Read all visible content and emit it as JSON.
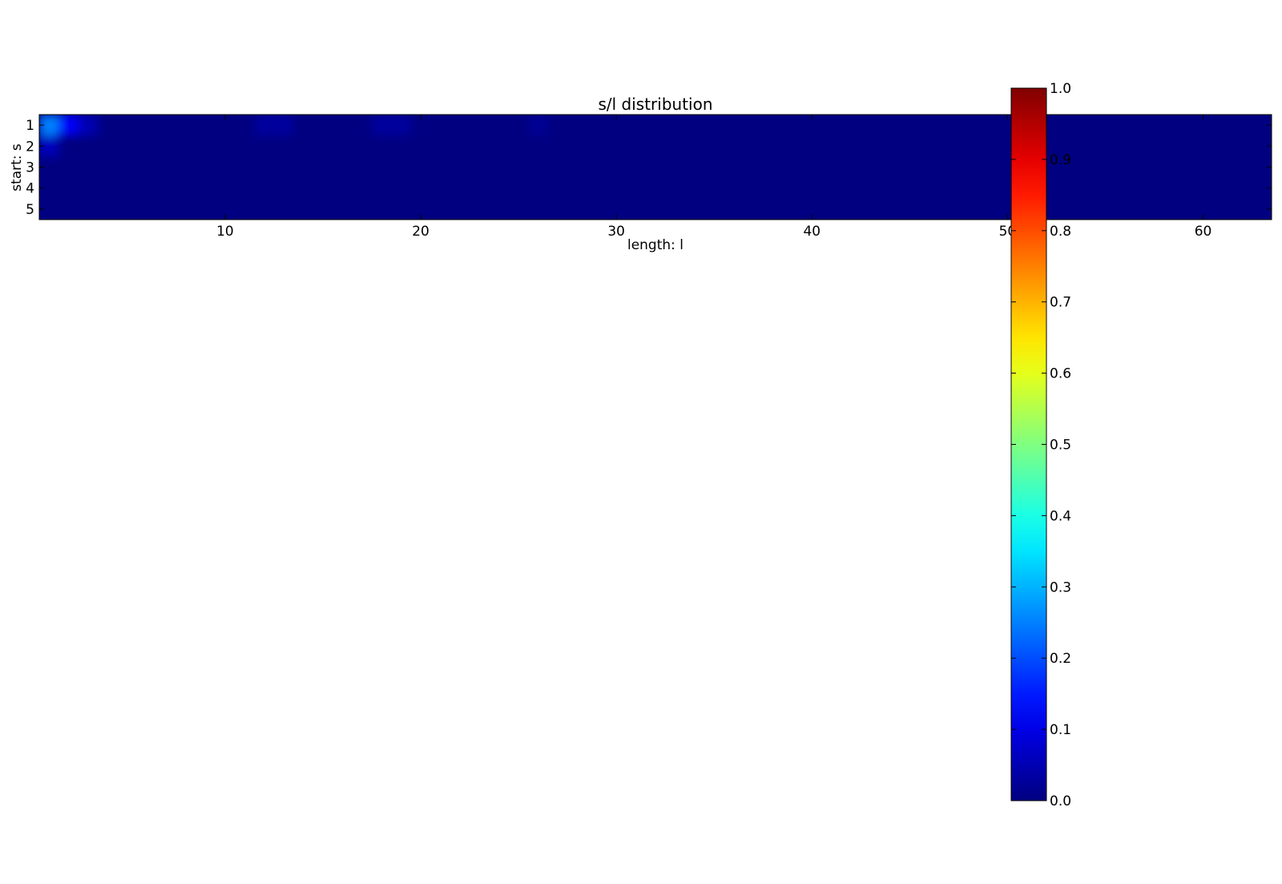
{
  "chart_data": {
    "type": "heatmap",
    "title": "s/l distribution",
    "xlabel": "length: l",
    "ylabel": "start: s",
    "x_range": [
      1,
      63
    ],
    "y_range": [
      1,
      5
    ],
    "x_ticks": [
      10,
      20,
      30,
      40,
      50,
      60
    ],
    "x_tick_labels": [
      "10",
      "20",
      "30",
      "40",
      "50",
      "60"
    ],
    "y_ticks": [
      1,
      2,
      3,
      4,
      5
    ],
    "y_tick_labels": [
      "1",
      "2",
      "3",
      "4",
      "5"
    ],
    "colormap": "jet",
    "colorbar": {
      "range": [
        0.0,
        1.0
      ],
      "ticks": [
        0.0,
        0.1,
        0.2,
        0.3,
        0.4,
        0.5,
        0.6,
        0.7,
        0.8,
        0.9,
        1.0
      ],
      "tick_labels": [
        "0.0",
        "0.1",
        "0.2",
        "0.3",
        "0.4",
        "0.5",
        "0.6",
        "0.7",
        "0.8",
        "0.9",
        "1.0"
      ]
    },
    "cells": [
      {
        "s": 1,
        "l": 1,
        "value": 0.25
      },
      {
        "s": 1,
        "l": 2,
        "value": 0.12
      },
      {
        "s": 1,
        "l": 3,
        "value": 0.05
      },
      {
        "s": 2,
        "l": 1,
        "value": 0.06
      },
      {
        "s": 1,
        "l": 12,
        "value": 0.03
      },
      {
        "s": 1,
        "l": 13,
        "value": 0.03
      },
      {
        "s": 1,
        "l": 18,
        "value": 0.03
      },
      {
        "s": 1,
        "l": 19,
        "value": 0.03
      },
      {
        "s": 1,
        "l": 26,
        "value": 0.02
      }
    ],
    "default_value": 0.0,
    "grid": false
  }
}
